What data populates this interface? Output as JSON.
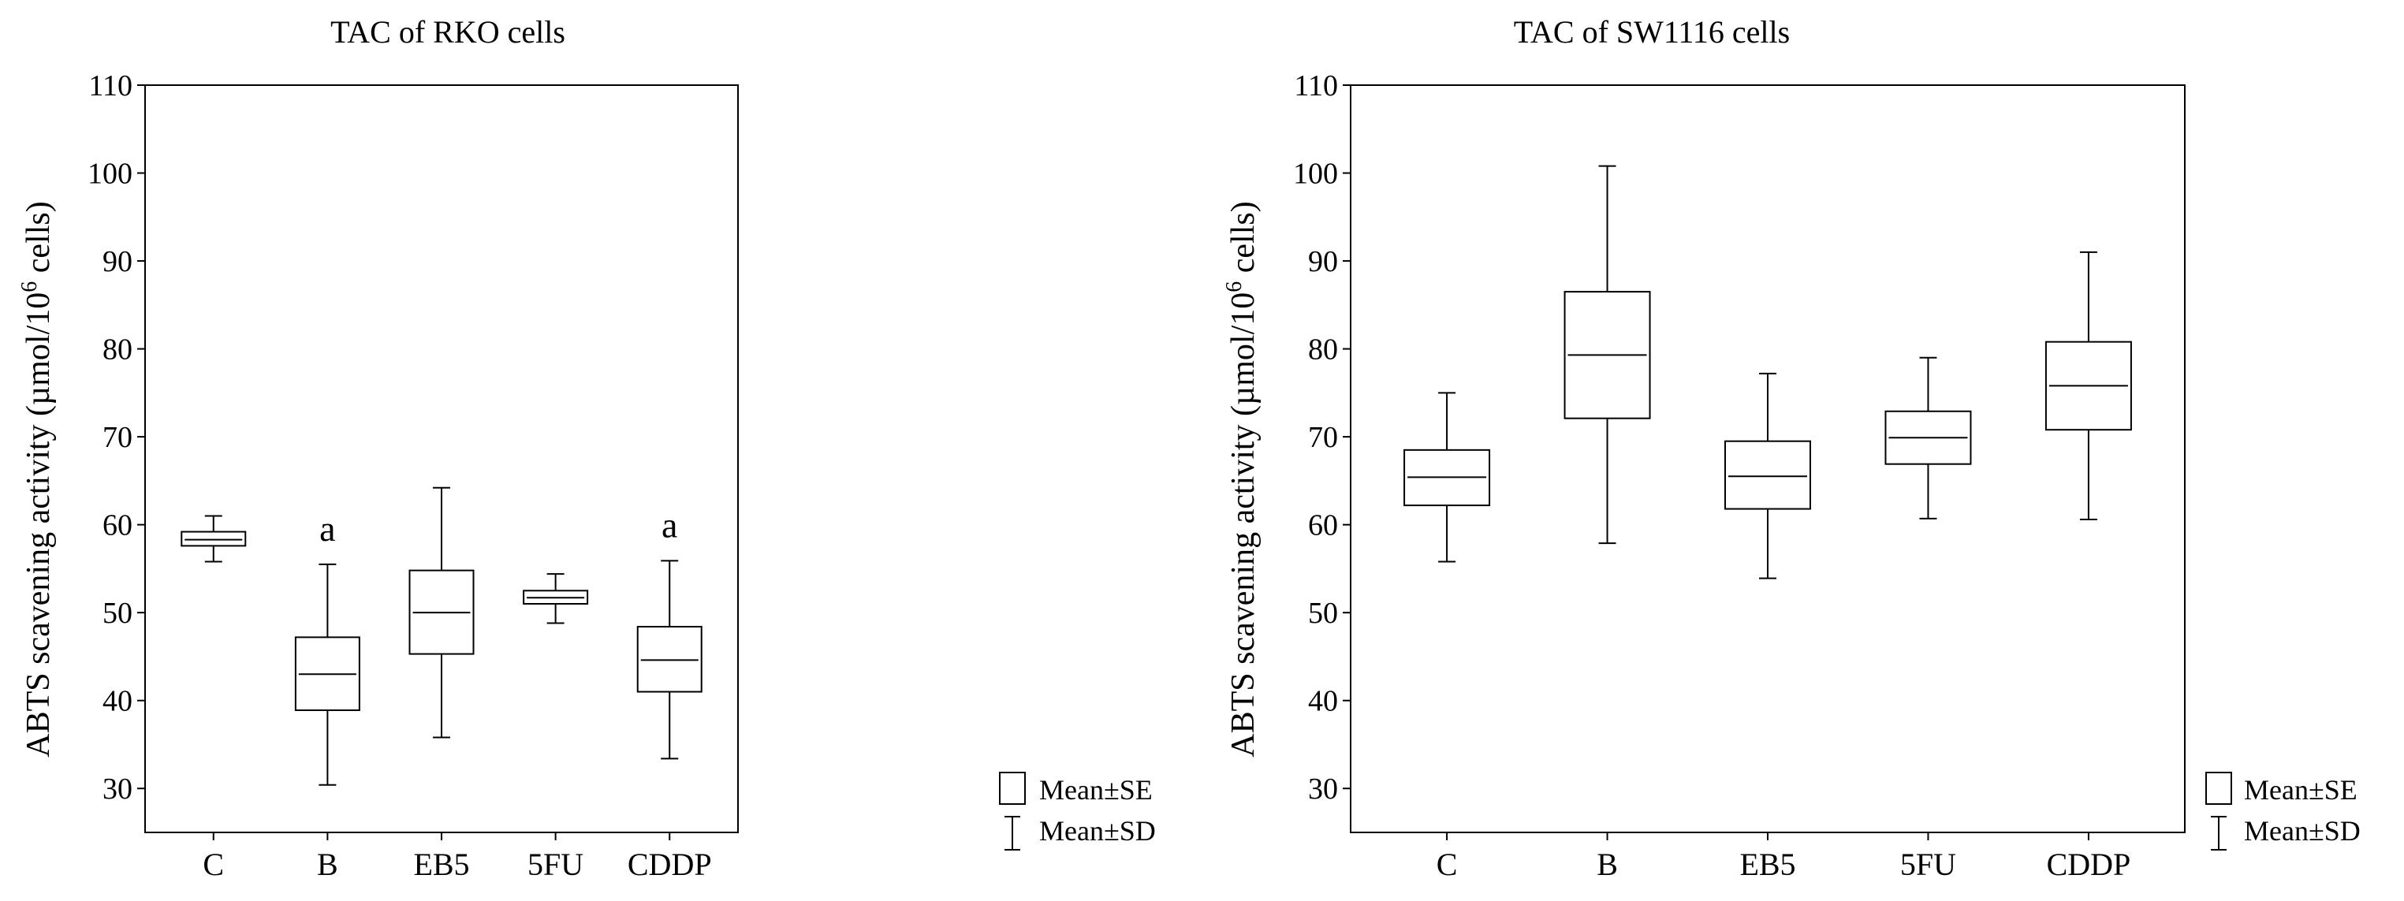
{
  "chart_data": [
    {
      "type": "box",
      "title": "TAC of RKO cells",
      "ylabel": {
        "prefix": "ABTS scavening activity (µmol/10",
        "superscript": "6",
        "suffix": " cells)"
      },
      "ylim": [
        25,
        110
      ],
      "yticks": [
        30,
        40,
        50,
        60,
        70,
        80,
        90,
        100,
        110
      ],
      "categories": [
        "C",
        "B",
        "EB5",
        "5FU",
        "CDDP"
      ],
      "mean": [
        58.3,
        43.0,
        50.0,
        51.7,
        44.6
      ],
      "se_low": [
        57.6,
        38.9,
        45.3,
        51.0,
        41.0
      ],
      "se_high": [
        59.2,
        47.2,
        54.8,
        52.5,
        48.4
      ],
      "sd_low": [
        55.8,
        30.4,
        35.8,
        48.8,
        33.4
      ],
      "sd_high": [
        61.0,
        55.5,
        64.2,
        54.4,
        55.9
      ],
      "annotations": [
        "",
        "a",
        "",
        "",
        "a"
      ],
      "legend": {
        "se_label": "Mean±SE",
        "sd_label": "Mean±SD"
      }
    },
    {
      "type": "box",
      "title": "TAC of SW1116 cells",
      "ylabel": {
        "prefix": "ABTS scavening activity (µmol/10",
        "superscript": "6",
        "suffix": " cells)"
      },
      "ylim": [
        25,
        110
      ],
      "yticks": [
        30,
        40,
        50,
        60,
        70,
        80,
        90,
        100,
        110
      ],
      "categories": [
        "C",
        "B",
        "EB5",
        "5FU",
        "CDDP"
      ],
      "mean": [
        65.4,
        79.3,
        65.5,
        69.9,
        75.8
      ],
      "se_low": [
        62.2,
        72.1,
        61.8,
        66.9,
        70.8
      ],
      "se_high": [
        68.5,
        86.5,
        69.5,
        72.9,
        80.8
      ],
      "sd_low": [
        55.8,
        57.9,
        53.9,
        60.7,
        60.6
      ],
      "sd_high": [
        75.0,
        100.8,
        77.2,
        79.0,
        91.0
      ],
      "annotations": [
        "",
        "",
        "",
        "",
        ""
      ],
      "legend": {
        "se_label": "Mean±SE",
        "sd_label": "Mean±SD"
      }
    }
  ]
}
